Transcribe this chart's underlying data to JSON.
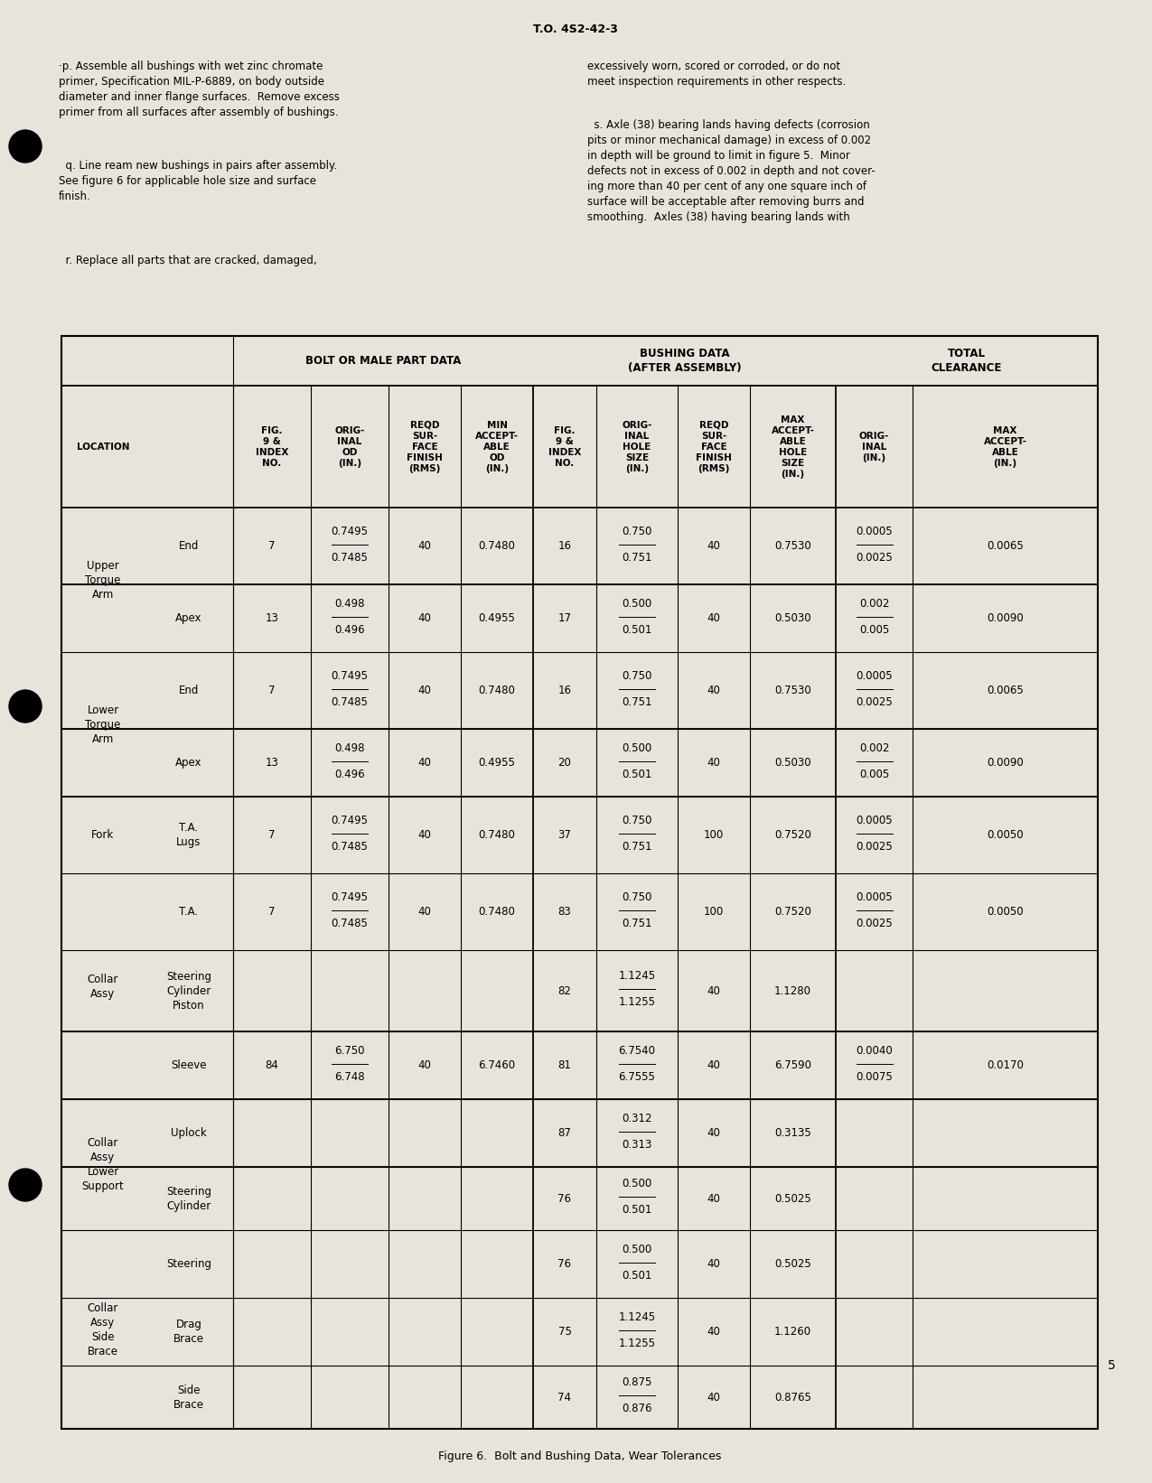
{
  "page_header": "T.O. 4S2-42-3",
  "page_number": "5",
  "figure_caption": "Figure 6.  Bolt and Bushing Data, Wear Tolerances",
  "bg_color": "#e8e4dc",
  "table": {
    "rows": [
      {
        "loc1": "Upper\nTorque\nArm",
        "loc2": "End",
        "fig1": "7",
        "orig_od": "0.7495\n0.7485",
        "reqd_sf": "40",
        "min_od": "0.7480",
        "fig2": "16",
        "orig_hole": "0.750\n0.751",
        "reqd_sf2": "40",
        "max_hole": "0.7530",
        "orig_cl": "0.0005\n0.0025",
        "max_cl": "0.0065"
      },
      {
        "loc1": "",
        "loc2": "Apex",
        "fig1": "13",
        "orig_od": "0.498\n0.496",
        "reqd_sf": "40",
        "min_od": "0.4955",
        "fig2": "17",
        "orig_hole": "0.500\n0.501",
        "reqd_sf2": "40",
        "max_hole": "0.5030",
        "orig_cl": "0.002\n0.005",
        "max_cl": "0.0090"
      },
      {
        "loc1": "Lower\nTorque\nArm",
        "loc2": "End",
        "fig1": "7",
        "orig_od": "0.7495\n0.7485",
        "reqd_sf": "40",
        "min_od": "0.7480",
        "fig2": "16",
        "orig_hole": "0.750\n0.751",
        "reqd_sf2": "40",
        "max_hole": "0.7530",
        "orig_cl": "0.0005\n0.0025",
        "max_cl": "0.0065"
      },
      {
        "loc1": "",
        "loc2": "Apex",
        "fig1": "13",
        "orig_od": "0.498\n0.496",
        "reqd_sf": "40",
        "min_od": "0.4955",
        "fig2": "20",
        "orig_hole": "0.500\n0.501",
        "reqd_sf2": "40",
        "max_hole": "0.5030",
        "orig_cl": "0.002\n0.005",
        "max_cl": "0.0090"
      },
      {
        "loc1": "Fork",
        "loc2": "T.A.\nLugs",
        "fig1": "7",
        "orig_od": "0.7495\n0.7485",
        "reqd_sf": "40",
        "min_od": "0.7480",
        "fig2": "37",
        "orig_hole": "0.750\n0.751",
        "reqd_sf2": "100",
        "max_hole": "0.7520",
        "orig_cl": "0.0005\n0.0025",
        "max_cl": "0.0050"
      },
      {
        "loc1": "Collar\nAssy",
        "loc2": "T.A.",
        "fig1": "7",
        "orig_od": "0.7495\n0.7485",
        "reqd_sf": "40",
        "min_od": "0.7480",
        "fig2": "83",
        "orig_hole": "0.750\n0.751",
        "reqd_sf2": "100",
        "max_hole": "0.7520",
        "orig_cl": "0.0005\n0.0025",
        "max_cl": "0.0050"
      },
      {
        "loc1": "",
        "loc2": "Steering\nCylinder\nPiston",
        "fig1": "",
        "orig_od": "",
        "reqd_sf": "",
        "min_od": "",
        "fig2": "82",
        "orig_hole": "1.1245\n1.1255",
        "reqd_sf2": "40",
        "max_hole": "1.1280",
        "orig_cl": "",
        "max_cl": ""
      },
      {
        "loc1": "",
        "loc2": "Sleeve",
        "fig1": "84",
        "orig_od": "6.750\n6.748",
        "reqd_sf": "40",
        "min_od": "6.7460",
        "fig2": "81",
        "orig_hole": "6.7540\n6.7555",
        "reqd_sf2": "40",
        "max_hole": "6.7590",
        "orig_cl": "0.0040\n0.0075",
        "max_cl": "0.0170"
      },
      {
        "loc1": "Collar\nAssy\nLower\nSupport",
        "loc2": "Uplock",
        "fig1": "",
        "orig_od": "",
        "reqd_sf": "",
        "min_od": "",
        "fig2": "87",
        "orig_hole": "0.312\n0.313",
        "reqd_sf2": "40",
        "max_hole": "0.3135",
        "orig_cl": "",
        "max_cl": ""
      },
      {
        "loc1": "",
        "loc2": "Steering\nCylinder",
        "fig1": "",
        "orig_od": "",
        "reqd_sf": "",
        "min_od": "",
        "fig2": "76",
        "orig_hole": "0.500\n0.501",
        "reqd_sf2": "40",
        "max_hole": "0.5025",
        "orig_cl": "",
        "max_cl": ""
      },
      {
        "loc1": "Collar\nAssy\nSide\nBrace",
        "loc2": "Steering",
        "fig1": "",
        "orig_od": "",
        "reqd_sf": "",
        "min_od": "",
        "fig2": "76",
        "orig_hole": "0.500\n0.501",
        "reqd_sf2": "40",
        "max_hole": "0.5025",
        "orig_cl": "",
        "max_cl": ""
      },
      {
        "loc1": "",
        "loc2": "Drag\nBrace",
        "fig1": "",
        "orig_od": "",
        "reqd_sf": "",
        "min_od": "",
        "fig2": "75",
        "orig_hole": "1.1245\n1.1255",
        "reqd_sf2": "40",
        "max_hole": "1.1260",
        "orig_cl": "",
        "max_cl": ""
      },
      {
        "loc1": "",
        "loc2": "Side\nBrace",
        "fig1": "",
        "orig_od": "",
        "reqd_sf": "",
        "min_od": "",
        "fig2": "74",
        "orig_hole": "0.875\n0.876",
        "reqd_sf2": "40",
        "max_hole": "0.8765",
        "orig_cl": "",
        "max_cl": ""
      }
    ]
  }
}
